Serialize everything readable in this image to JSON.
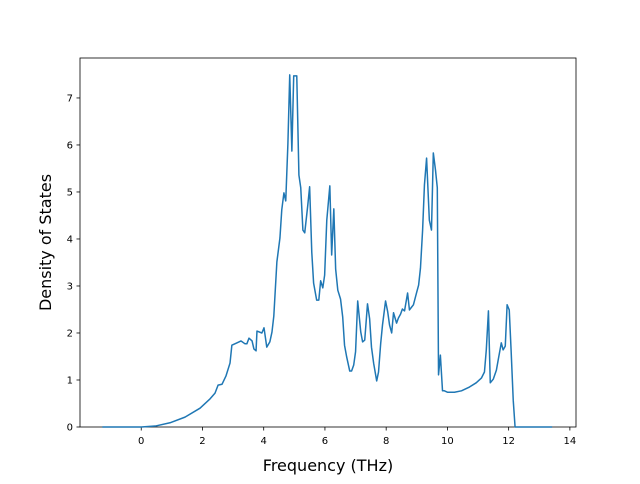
{
  "chart_data": {
    "type": "line",
    "x_label": "Frequency (THz)",
    "y_label": "Density of States",
    "xlim": [
      -2.0,
      14.2
    ],
    "ylim": [
      0,
      7.85
    ],
    "xticks": [
      0,
      2,
      4,
      6,
      8,
      10,
      12,
      14
    ],
    "yticks": [
      0,
      1,
      2,
      3,
      4,
      5,
      6,
      7
    ],
    "color": "#1f77b4",
    "x": [
      -1.27,
      0,
      0.46,
      0.94,
      1.43,
      1.92,
      2.25,
      2.41,
      2.51,
      2.64,
      2.77,
      2.9,
      2.96,
      3.13,
      3.26,
      3.39,
      3.45,
      3.52,
      3.62,
      3.68,
      3.75,
      3.78,
      3.94,
      4.01,
      4.1,
      4.2,
      4.27,
      4.33,
      4.43,
      4.53,
      4.59,
      4.66,
      4.72,
      4.79,
      4.85,
      4.92,
      4.98,
      5.08,
      5.15,
      5.21,
      5.28,
      5.34,
      5.44,
      5.5,
      5.57,
      5.63,
      5.73,
      5.8,
      5.86,
      5.93,
      5.99,
      6.06,
      6.16,
      6.22,
      6.29,
      6.35,
      6.42,
      6.51,
      6.58,
      6.64,
      6.71,
      6.81,
      6.87,
      6.94,
      7.0,
      7.07,
      7.17,
      7.23,
      7.3,
      7.39,
      7.46,
      7.52,
      7.59,
      7.69,
      7.75,
      7.82,
      7.88,
      7.98,
      8.05,
      8.11,
      8.18,
      8.24,
      8.34,
      8.4,
      8.47,
      8.53,
      8.6,
      8.7,
      8.76,
      8.83,
      8.89,
      8.99,
      9.06,
      9.12,
      9.19,
      9.25,
      9.32,
      9.41,
      9.48,
      9.54,
      9.61,
      9.67,
      9.71,
      9.74,
      9.77,
      9.84,
      9.9,
      10.0,
      10.23,
      10.46,
      10.72,
      10.94,
      11.11,
      11.21,
      11.27,
      11.34,
      11.4,
      11.5,
      11.6,
      11.66,
      11.76,
      11.82,
      11.89,
      11.95,
      12.02,
      12.08,
      12.15,
      12.21,
      12.35,
      13.42
    ],
    "y": [
      0,
      0,
      0.02,
      0.09,
      0.21,
      0.4,
      0.6,
      0.72,
      0.89,
      0.91,
      1.09,
      1.36,
      1.74,
      1.79,
      1.83,
      1.77,
      1.77,
      1.89,
      1.83,
      1.66,
      1.62,
      2.04,
      2.0,
      2.11,
      1.7,
      1.81,
      2.02,
      2.36,
      3.51,
      4.02,
      4.62,
      4.98,
      4.81,
      6.02,
      7.49,
      5.87,
      7.47,
      7.47,
      5.36,
      5.09,
      4.19,
      4.13,
      4.72,
      5.11,
      3.72,
      3.06,
      2.7,
      2.7,
      3.11,
      2.96,
      3.23,
      4.4,
      5.13,
      3.66,
      4.64,
      3.36,
      2.91,
      2.72,
      2.34,
      1.74,
      1.49,
      1.19,
      1.19,
      1.32,
      1.6,
      2.68,
      2.02,
      1.81,
      1.85,
      2.62,
      2.3,
      1.7,
      1.36,
      0.98,
      1.17,
      1.77,
      2.17,
      2.68,
      2.45,
      2.17,
      2.0,
      2.43,
      2.21,
      2.32,
      2.4,
      2.51,
      2.47,
      2.85,
      2.49,
      2.55,
      2.6,
      2.85,
      3.02,
      3.38,
      4.19,
      5.15,
      5.72,
      4.4,
      4.19,
      5.83,
      5.47,
      5.09,
      1.11,
      1.32,
      1.53,
      0.77,
      0.77,
      0.74,
      0.74,
      0.77,
      0.85,
      0.94,
      1.04,
      1.17,
      1.64,
      2.47,
      0.94,
      1.02,
      1.21,
      1.43,
      1.79,
      1.64,
      1.72,
      2.6,
      2.49,
      1.64,
      0.57,
      0,
      0,
      0
    ]
  }
}
